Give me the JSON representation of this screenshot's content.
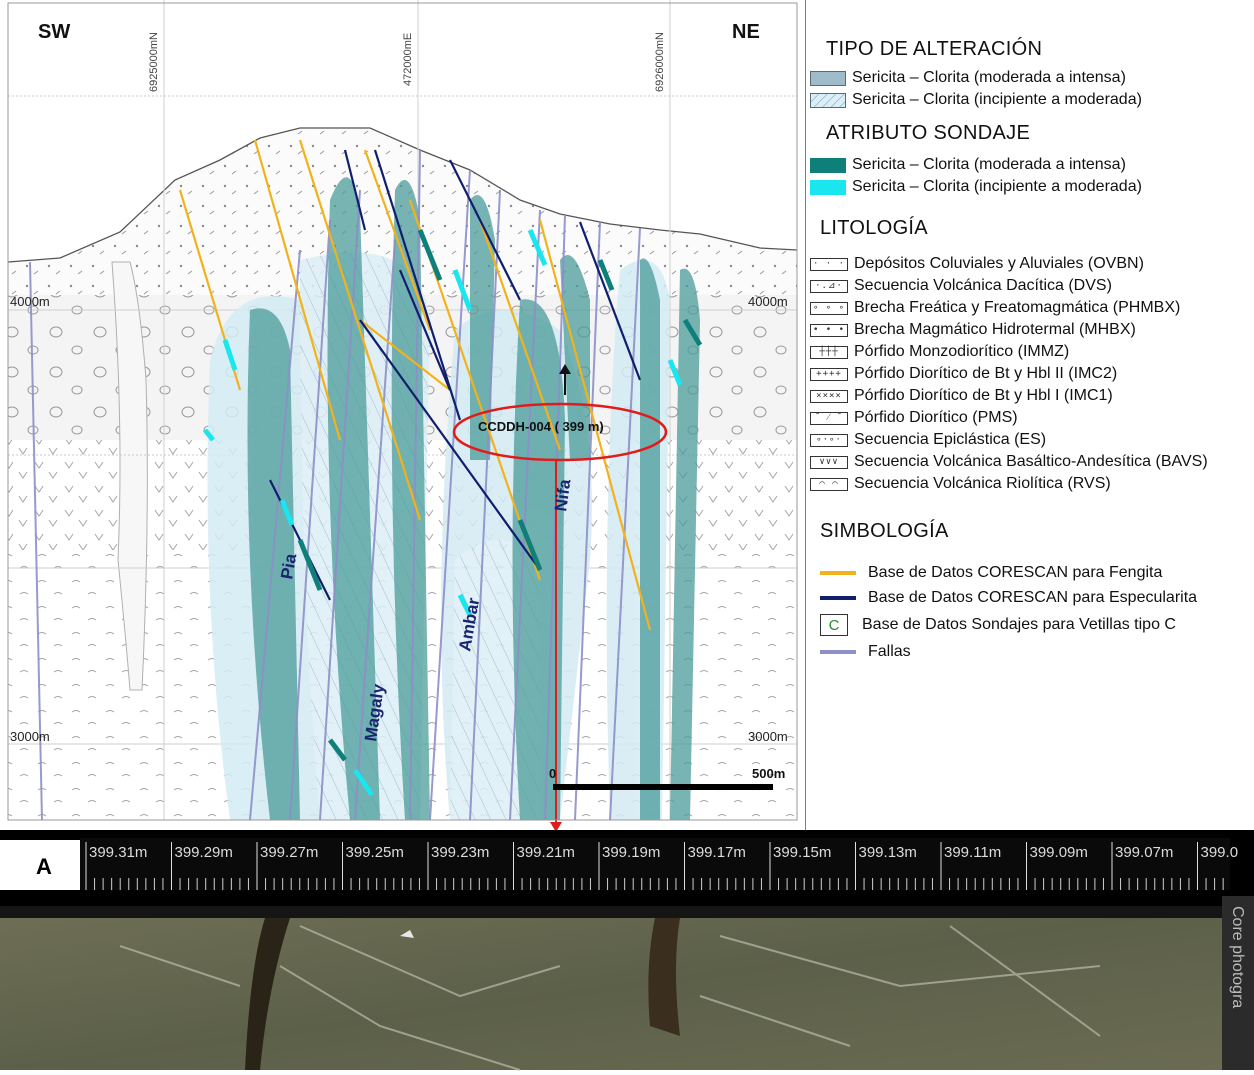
{
  "section": {
    "compass_left": "SW",
    "compass_right": "NE",
    "coord_labels": [
      "6925000mN",
      "472000mE",
      "6926000mN"
    ],
    "elevation_labels": {
      "left_4000": "4000m",
      "right_4000": "4000m",
      "left_3000": "3000m",
      "right_3000": "3000m"
    },
    "drillhole_label": "CCDDH-004 ( 399 m)",
    "fault_names": [
      "Pia",
      "Magaly",
      "Ambar",
      "Nifa"
    ],
    "scale_start": "0",
    "scale_end": "500m"
  },
  "legend": {
    "alteration_title": "TIPO DE ALTERACIÓN",
    "alteration": [
      {
        "label": "Sericita – Clorita (moderada a intensa)",
        "color": "#9fbccb"
      },
      {
        "label": "Sericita – Clorita (incipiente a moderada)",
        "color": "#d9eef7"
      }
    ],
    "attribute_title": "ATRIBUTO SONDAJE",
    "attribute": [
      {
        "label": "Sericita – Clorita (moderada a intensa)",
        "color": "#0f7f7a"
      },
      {
        "label": "Sericita – Clorita (incipiente a moderada)",
        "color": "#19e6ef"
      }
    ],
    "lithology_title": "LITOLOGÍA",
    "lithology": [
      {
        "label": "Depósitos Coluviales y Aluviales (OVBN)",
        "symbol": "· · ·"
      },
      {
        "label": "Secuencia Volcánica Dacítica (DVS)",
        "symbol": "·.⊿·"
      },
      {
        "label": "Brecha Freática y Freatomagmática (PHMBX)",
        "symbol": "∘ ∘ ∘"
      },
      {
        "label": "Brecha Magmático Hidrotermal (MHBX)",
        "symbol": "• • •"
      },
      {
        "label": "Pórfido Monzodiorítico (IMMZ)",
        "symbol": "┼┼┼"
      },
      {
        "label": "Pórfido Diorítico de Bt y Hbl II (IMC2)",
        "symbol": "++++"
      },
      {
        "label": "Pórfido Diorítico de Bt y Hbl I (IMC1)",
        "symbol": "××××"
      },
      {
        "label": "Pórfido Diorítico (PMS)",
        "symbol": "˜ ⁄ ˜"
      },
      {
        "label": "Secuencia Epiclástica (ES)",
        "symbol": "∘·∘·"
      },
      {
        "label": "Secuencia Volcánica Basáltico-Andesítica (BAVS)",
        "symbol": "∨∨∨"
      },
      {
        "label": "Secuencia Volcánica Riolítica (RVS)",
        "symbol": "⌒ ⌒"
      }
    ],
    "symbology_title": "SIMBOLOGÍA",
    "symbology": [
      {
        "label": "Base de Datos CORESCAN para Fengita",
        "color": "#f2b21b",
        "kind": "line"
      },
      {
        "label": "Base de Datos CORESCAN para Especularita",
        "color": "#101e6e",
        "kind": "line"
      },
      {
        "label": "Base de Datos Sondajes para Vetillas tipo C",
        "color": "#2e8b2e",
        "kind": "box",
        "box_text": "C"
      },
      {
        "label": "Fallas",
        "color": "#8d8fc8",
        "kind": "line"
      }
    ]
  },
  "core": {
    "panel_label": "A",
    "depth_ticks": [
      "399.31m",
      "399.29m",
      "399.27m",
      "399.25m",
      "399.23m",
      "399.21m",
      "399.19m",
      "399.17m",
      "399.15m",
      "399.13m",
      "399.11m",
      "399.09m",
      "399.07m",
      "399.0"
    ],
    "side_label": "Core photogra"
  }
}
